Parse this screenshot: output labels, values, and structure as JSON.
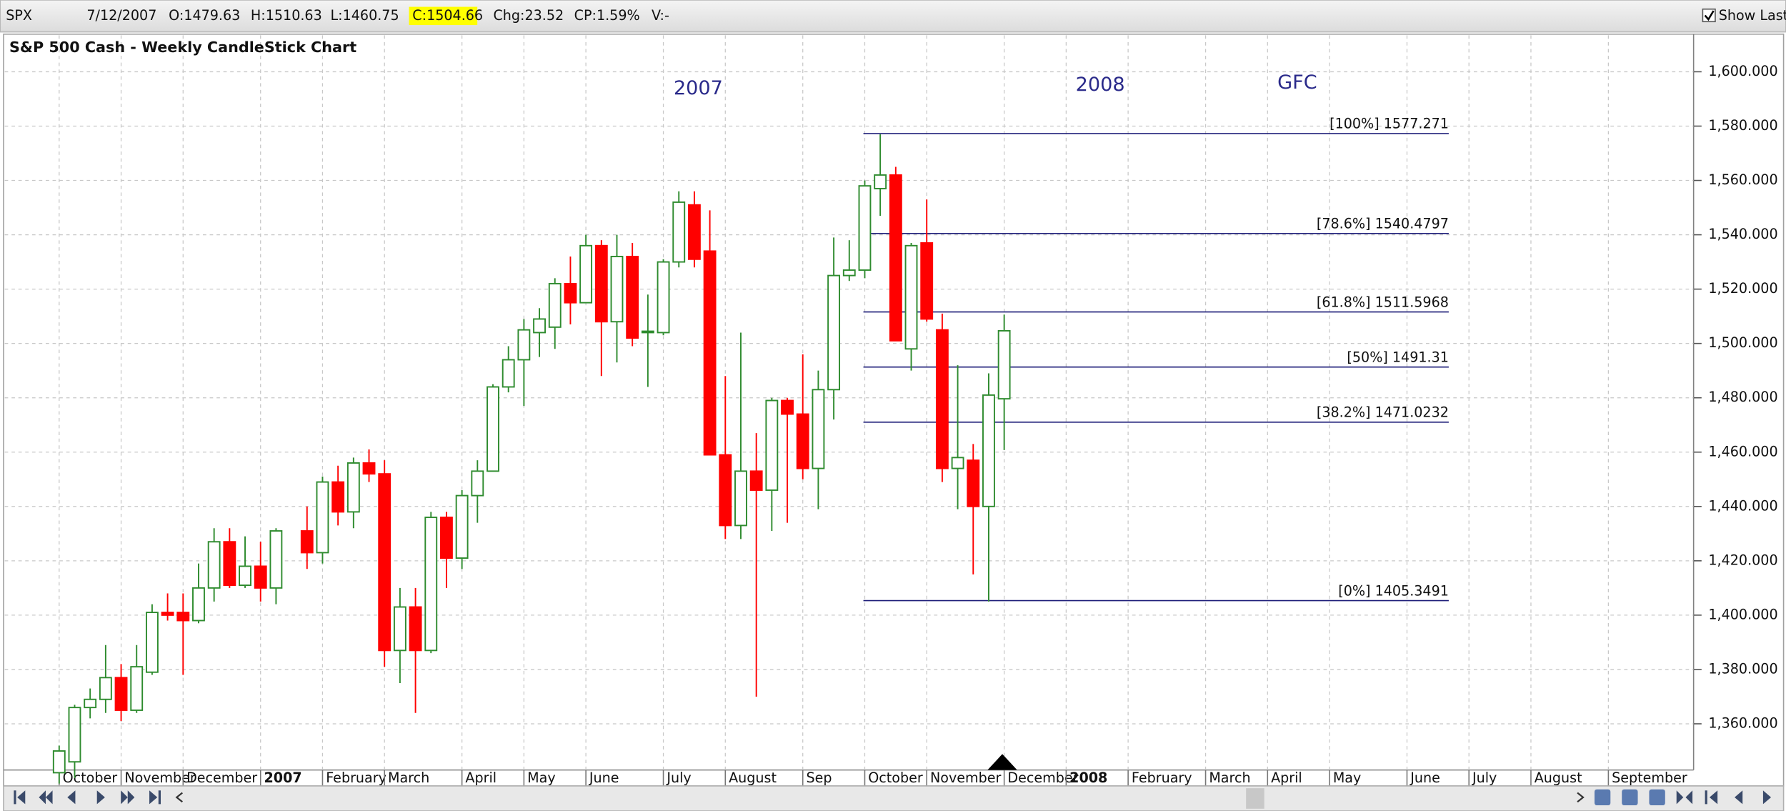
{
  "header": {
    "symbol": "SPX",
    "date": "7/12/2007",
    "open": "O:1479.63",
    "high": "H:1510.63",
    "low": "L:1460.75",
    "close": "C:1504.66",
    "change": "Chg:23.52",
    "change_percent": "CP:1.59%",
    "volume": "V:-",
    "show_last": "Show Last"
  },
  "chart_data": {
    "type": "candlestick",
    "title": "S&P 500 Cash - Weekly CandleStick Chart",
    "annotations": [
      "2007",
      "2008",
      "GFC"
    ],
    "categories": [
      "October",
      null,
      null,
      null,
      "November",
      null,
      null,
      null,
      "December",
      null,
      null,
      null,
      null,
      "2007",
      null,
      null,
      null,
      "February",
      null,
      null,
      null,
      "March",
      null,
      null,
      null,
      null,
      "April",
      null,
      null,
      null,
      "May",
      null,
      null,
      null,
      "June",
      null,
      null,
      null,
      null,
      "July",
      null,
      null,
      null,
      "August",
      null,
      null,
      null,
      null,
      "Sep",
      null,
      null,
      null,
      "October",
      null,
      null,
      null,
      "November",
      null,
      null,
      null,
      null,
      "December",
      null,
      null,
      null,
      "2008",
      null,
      null,
      null,
      "February",
      null,
      null,
      null,
      null,
      "March",
      null,
      null,
      null,
      "April",
      null,
      null,
      null,
      "May",
      null,
      null,
      null,
      null,
      "June",
      null,
      null,
      null,
      "July",
      null,
      null,
      null,
      "August",
      null,
      null,
      null,
      null,
      "September",
      null,
      null,
      null,
      null,
      null
    ],
    "open": [
      1342,
      1346,
      1366,
      1369,
      1377,
      1365,
      1379,
      1401,
      1401,
      1398,
      1410,
      1427,
      1411,
      1418,
      1410,
      null,
      1431,
      1423,
      1449,
      1438,
      1456,
      1452,
      1387,
      1403,
      1387,
      1436,
      1421,
      1444,
      1453,
      1484,
      1494,
      1504,
      1506,
      1522,
      1515,
      1536,
      1508,
      1532,
      1504,
      1504,
      1530,
      1551,
      1534,
      1459,
      1433,
      1453,
      1446,
      1479,
      1474,
      1454,
      1483,
      1525,
      1527,
      1557,
      1562,
      1498,
      1537,
      1505,
      1454,
      1457,
      1440,
      1479.63,
      null,
      null,
      null,
      null,
      null,
      null,
      null,
      null,
      null,
      null,
      null,
      null,
      null,
      null,
      null,
      null,
      null,
      null,
      null,
      null,
      null,
      null,
      null,
      null,
      null,
      null,
      null,
      null,
      null,
      null,
      null,
      null,
      null,
      null,
      null,
      null,
      null,
      null,
      null,
      null,
      null,
      null,
      null,
      null
    ],
    "high": [
      1352,
      1367,
      1373,
      1389,
      1382,
      1389,
      1404,
      1408,
      1408,
      1419,
      1432,
      1432,
      1429,
      1427,
      1432,
      null,
      1440,
      1451,
      1455,
      1458,
      1461,
      1457,
      1410,
      1410,
      1438,
      1438,
      1446,
      1457,
      1485,
      1499,
      1509,
      1513,
      1524,
      1532,
      1540,
      1538,
      1540,
      1537,
      1518,
      1531,
      1556,
      1556,
      1549,
      1488,
      1504,
      1467,
      1480,
      1480,
      1496,
      1490,
      1539,
      1538,
      1560,
      1577,
      1565,
      1537,
      1553,
      1511,
      1492,
      1463,
      1489,
      1510.63,
      null,
      null,
      null,
      null,
      null,
      null,
      null,
      null,
      null,
      null,
      null,
      null,
      null,
      null,
      null,
      null,
      null,
      null,
      null,
      null,
      null,
      null,
      null,
      null,
      null,
      null,
      null,
      null,
      null,
      null,
      null,
      null,
      null,
      null,
      null,
      null,
      null,
      null,
      null,
      null,
      null,
      null,
      null,
      null
    ],
    "low": [
      1338,
      1340,
      1362,
      1364,
      1361,
      1364,
      1378,
      1398,
      1378,
      1397,
      1405,
      1410,
      1410,
      1405,
      1404,
      null,
      1417,
      1419,
      1433,
      1432,
      1449,
      1381,
      1375,
      1364,
      1386,
      1410,
      1417,
      1434,
      1453,
      1482,
      1477,
      1495,
      1498,
      1507,
      1515,
      1488,
      1493,
      1499,
      1484,
      1503,
      1528,
      1528,
      1459,
      1428,
      1428,
      1370,
      1431,
      1434,
      1450,
      1439,
      1472,
      1523,
      1524,
      1547,
      1501,
      1490,
      1508,
      1449,
      1439,
      1415,
      1405,
      1460.75,
      null,
      null,
      null,
      null,
      null,
      null,
      null,
      null,
      null,
      null,
      null,
      null,
      null,
      null,
      null,
      null,
      null,
      null,
      null,
      null,
      null,
      null,
      null,
      null,
      null,
      null,
      null,
      null,
      null,
      null,
      null,
      null,
      null,
      null,
      null,
      null,
      null,
      null,
      null,
      null,
      null,
      null,
      null,
      null
    ],
    "close": [
      1350,
      1366,
      1369,
      1377,
      1365,
      1381,
      1401,
      1400,
      1398,
      1410,
      1427,
      1411,
      1418,
      1410,
      1431,
      null,
      1423,
      1449,
      1438,
      1456,
      1452,
      1387,
      1403,
      1387,
      1436,
      1421,
      1444,
      1453,
      1484,
      1494,
      1505,
      1509,
      1522,
      1515,
      1536,
      1508,
      1532,
      1502,
      1504.5,
      1530,
      1552,
      1531,
      1459,
      1433,
      1453,
      1446,
      1479,
      1474,
      1454,
      1483,
      1525,
      1527,
      1558,
      1562,
      1501,
      1536,
      1509,
      1454,
      1458,
      1440,
      1481,
      1504.66,
      null,
      null,
      null,
      null,
      null,
      null,
      null,
      null,
      null,
      null,
      null,
      null,
      null,
      null,
      null,
      null,
      null,
      null,
      null,
      null,
      null,
      null,
      null,
      null,
      null,
      null,
      null,
      null,
      null,
      null,
      null,
      null,
      null,
      null,
      null,
      null,
      null,
      null,
      null,
      null,
      null,
      null,
      null,
      null
    ],
    "up_color": "#2e8b2e",
    "down_color": "#ff0000",
    "fib_levels": [
      {
        "value": 1577.271,
        "label": "[100%] 1577.271"
      },
      {
        "value": 1540.4797,
        "label": "[78.6%] 1540.4797"
      },
      {
        "value": 1511.5968,
        "label": "[61.8%] 1511.5968"
      },
      {
        "value": 1491.31,
        "label": "[50%] 1491.31"
      },
      {
        "value": 1471.0232,
        "label": "[38.2%] 1471.0232"
      },
      {
        "value": 1405.3491,
        "label": "[0%] 1405.3491"
      }
    ],
    "fib_color": "#1c1c78",
    "ylim": [
      1343,
      1613
    ],
    "yticks": [
      {
        "value": 1360,
        "label": "1,360.000"
      },
      {
        "value": 1380,
        "label": "1,380.000"
      },
      {
        "value": 1400,
        "label": "1,400.000"
      },
      {
        "value": 1420,
        "label": "1,420.000"
      },
      {
        "value": 1440,
        "label": "1,440.000"
      },
      {
        "value": 1460,
        "label": "1,460.000"
      },
      {
        "value": 1480,
        "label": "1,480.000"
      },
      {
        "value": 1500,
        "label": "1,500.000"
      },
      {
        "value": 1520,
        "label": "1,520.000"
      },
      {
        "value": 1540,
        "label": "1,540.000"
      },
      {
        "value": 1560,
        "label": "1,560.000"
      },
      {
        "value": 1580,
        "label": "1,580.000"
      },
      {
        "value": 1600,
        "label": "1,600.000"
      }
    ],
    "grid": true
  }
}
